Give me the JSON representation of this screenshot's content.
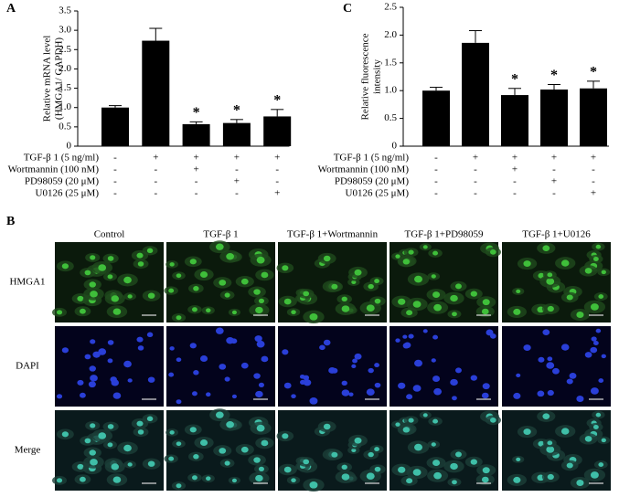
{
  "chart_data": [
    {
      "type": "bar",
      "panel": "A",
      "ylabel": [
        "Relative mRNA level",
        "(HMGA1/ GAPDH)"
      ],
      "categories": [
        null,
        null,
        null,
        null,
        null
      ],
      "values": [
        1.0,
        2.73,
        0.57,
        0.6,
        0.77
      ],
      "errors": [
        0.05,
        0.32,
        0.06,
        0.09,
        0.18
      ],
      "significance": [
        null,
        null,
        "*",
        "*",
        "*"
      ],
      "color": "#000000",
      "ylim": [
        0,
        3.5
      ],
      "yticks": [
        0,
        0.5,
        {
          "value": 1,
          "label": "1.0"
        },
        1.5,
        {
          "value": 2,
          "label": "2.0"
        },
        2.5,
        {
          "value": 3,
          "label": "3.0"
        },
        3.5
      ],
      "treatments": [
        {
          "name": "TGF-β 1 (5 ng/ml)",
          "signs": [
            "-",
            "+",
            "+",
            "+",
            "+"
          ]
        },
        {
          "name": "Wortmannin (100 nM)",
          "signs": [
            "-",
            "-",
            "+",
            "-",
            "-"
          ]
        },
        {
          "name": "PD98059 (20 μM)",
          "signs": [
            "-",
            "-",
            "-",
            "+",
            "-"
          ]
        },
        {
          "name": "U0126 (25 μM)",
          "signs": [
            "-",
            "-",
            "-",
            "-",
            "+"
          ]
        }
      ]
    },
    {
      "type": "bar",
      "panel": "C",
      "ylabel": [
        "Relative fluorescence",
        "intensity"
      ],
      "categories": [
        null,
        null,
        null,
        null,
        null
      ],
      "values": [
        1.0,
        1.86,
        0.92,
        1.02,
        1.04
      ],
      "errors": [
        0.06,
        0.22,
        0.12,
        0.09,
        0.13
      ],
      "significance": [
        null,
        null,
        "*",
        "*",
        "*"
      ],
      "color": "#000000",
      "ylim": [
        0,
        2.5
      ],
      "yticks": [
        0,
        0.5,
        {
          "value": 1,
          "label": "1.0"
        },
        1.5,
        {
          "value": 2,
          "label": "2.0"
        },
        2.5
      ],
      "treatments": [
        {
          "name": "TGF-β 1 (5 ng/ml)",
          "signs": [
            "-",
            "+",
            "+",
            "+",
            "+"
          ]
        },
        {
          "name": "Wortmannin (100 nM)",
          "signs": [
            "-",
            "-",
            "+",
            "-",
            "-"
          ]
        },
        {
          "name": "PD98059 (20 μM)",
          "signs": [
            "-",
            "-",
            "-",
            "+",
            "-"
          ]
        },
        {
          "name": "U0126 (25 μM)",
          "signs": [
            "-",
            "-",
            "-",
            "-",
            "+"
          ]
        }
      ]
    }
  ],
  "panel_b": {
    "panel": "B",
    "columns": [
      "Control",
      "TGF-β 1",
      "TGF-β 1+Wortmannin",
      "TGF-β 1+PD98059",
      "TGF-β 1+U0126"
    ],
    "rows": [
      "HMGA1",
      "DAPI",
      "Merge"
    ]
  }
}
